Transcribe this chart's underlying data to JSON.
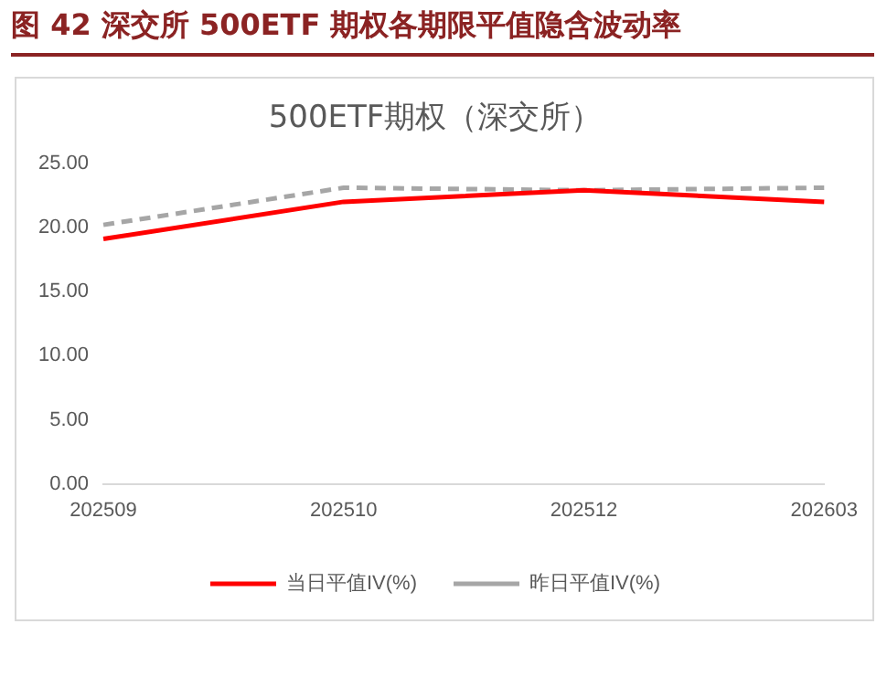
{
  "chart_data": {
    "type": "line",
    "title": "图 42   深交所 500ETF 期权各期限平值隐含波动率",
    "subtitle": "500ETF期权（深交所）",
    "categories": [
      "202509",
      "202510",
      "202512",
      "202603"
    ],
    "series": [
      {
        "name": "当日平值IV(%)",
        "color": "#ff0000",
        "values": [
          19.1,
          22.0,
          22.9,
          22.0
        ],
        "line_style": "solid"
      },
      {
        "name": "昨日平值IV(%)",
        "color": "#a6a6a6",
        "values": [
          20.2,
          23.1,
          22.9,
          23.1
        ],
        "line_style": "dashed"
      }
    ],
    "ylim": [
      0,
      25
    ],
    "yticks": [
      {
        "value": 0,
        "label": "0.00"
      },
      {
        "value": 5,
        "label": "5.00"
      },
      {
        "value": 10,
        "label": "10.00"
      },
      {
        "value": 15,
        "label": "15.00"
      },
      {
        "value": 20,
        "label": "20.00"
      },
      {
        "value": 25,
        "label": "25.00"
      }
    ],
    "grid": false,
    "legend": "bottom",
    "marker": "none"
  }
}
